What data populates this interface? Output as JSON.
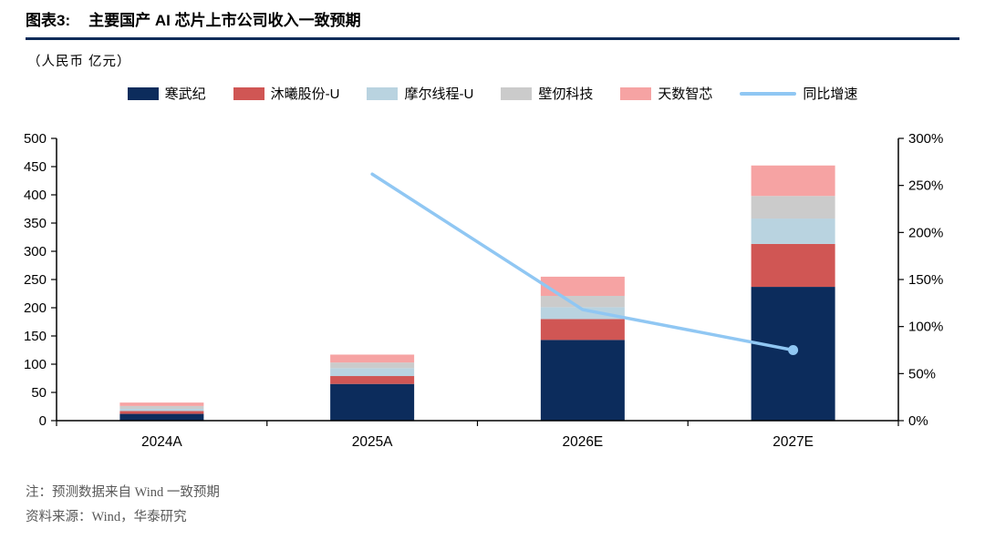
{
  "header": {
    "title_prefix": "图表3:",
    "title": "主要国产 AI 芯片上市公司收入一致预期",
    "unit_label": "（人民币 亿元）"
  },
  "chart_data": {
    "type": "bar",
    "subtype": "stacked-bar-with-line",
    "categories": [
      "2024A",
      "2025A",
      "2026E",
      "2027E"
    ],
    "series": [
      {
        "name": "寒武纪",
        "color": "#0c2c5c",
        "values": [
          12,
          65,
          143,
          237
        ]
      },
      {
        "name": "沐曦股份-U",
        "color": "#d05654",
        "values": [
          5,
          14,
          37,
          76
        ]
      },
      {
        "name": "摩尔线程-U",
        "color": "#b9d3e0",
        "values": [
          4,
          14,
          21,
          45
        ]
      },
      {
        "name": "壁仞科技",
        "color": "#cbcbcb",
        "values": [
          5,
          10,
          20,
          40
        ]
      },
      {
        "name": "天数智芯",
        "color": "#f6a3a3",
        "values": [
          6,
          14,
          34,
          54
        ]
      }
    ],
    "line_series": {
      "name": "同比增速",
      "color": "#90c7f3",
      "axis": "right",
      "values": [
        null,
        262,
        118,
        75
      ]
    },
    "left_axis": {
      "min": 0,
      "max": 500,
      "step": 50
    },
    "right_axis": {
      "min": 0,
      "max": 300,
      "step": 50,
      "suffix": "%"
    },
    "legend_position": "top",
    "grid": false,
    "title": "主要国产 AI 芯片上市公司收入一致预期",
    "ylabel": "人民币 亿元"
  },
  "footnotes": {
    "note": "注：预测数据来自 Wind 一致预期",
    "source": "资料来源：Wind，华泰研究"
  }
}
